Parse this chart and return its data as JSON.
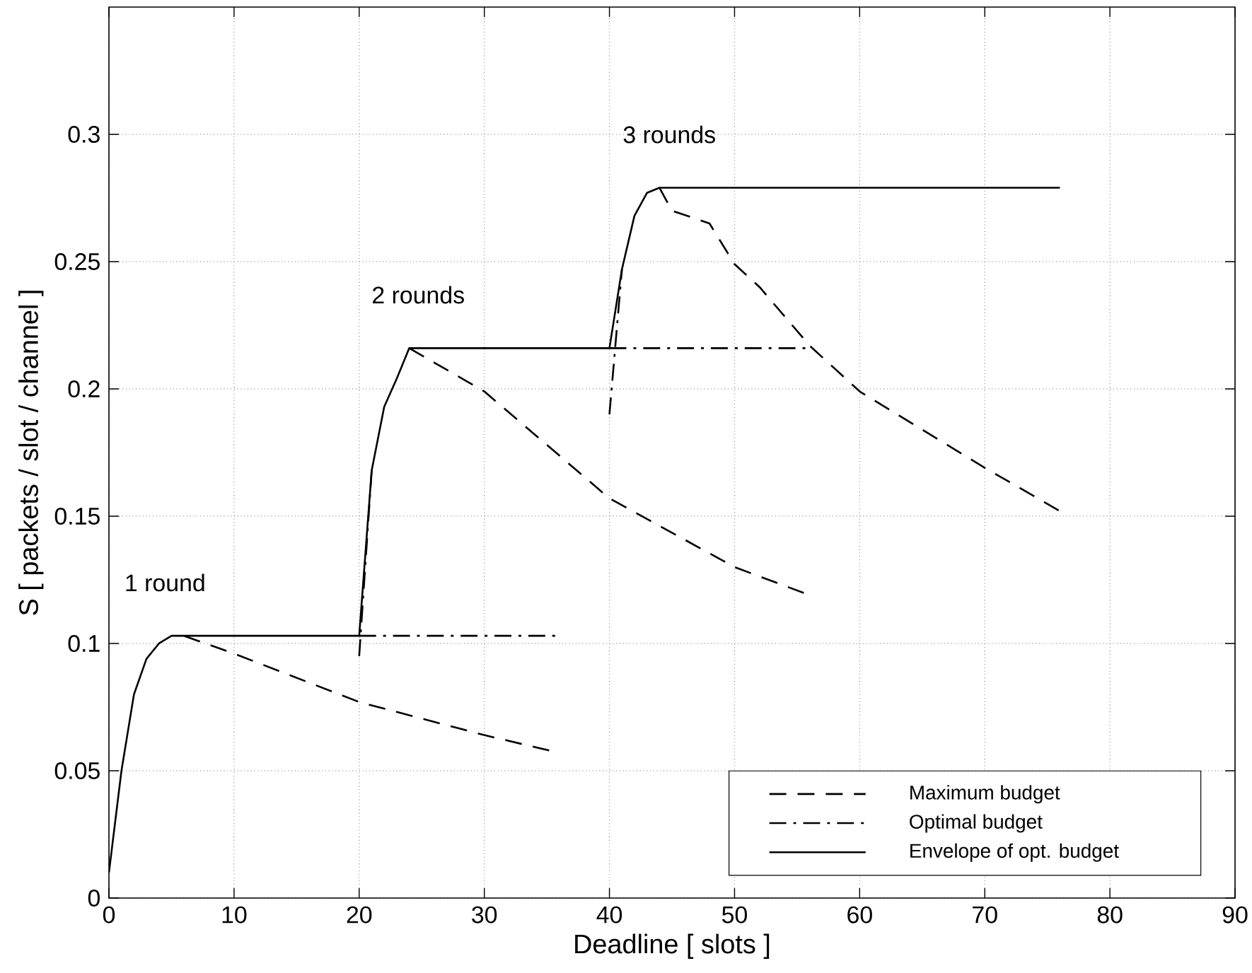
{
  "chart_data": {
    "type": "line",
    "xlabel": "Deadline [ slots ]",
    "ylabel": "S [ packets / slot / channel ]",
    "xlim": [
      0,
      90
    ],
    "ylim": [
      0,
      0.35
    ],
    "xticks": [
      0,
      10,
      20,
      30,
      40,
      50,
      60,
      70,
      80,
      90
    ],
    "yticks": [
      0,
      0.05,
      0.1,
      0.15,
      0.2,
      0.25,
      0.3
    ],
    "grid": true,
    "legend": "bottom right",
    "marker": "none",
    "series": [
      {
        "name": "Maximum budget",
        "color": "#000000",
        "line_style": "dashed",
        "x": [
          6,
          10,
          20,
          30,
          36,
          null,
          24,
          30,
          35,
          40,
          50,
          56,
          null,
          44,
          45,
          48,
          50,
          52,
          56,
          60,
          70,
          76
        ],
        "values": [
          0.103,
          0.096,
          0.077,
          0.064,
          0.057,
          null,
          0.216,
          0.199,
          0.178,
          0.157,
          0.13,
          0.119,
          null,
          0.279,
          0.27,
          0.265,
          0.249,
          0.24,
          0.217,
          0.199,
          0.169,
          0.152
        ]
      },
      {
        "name": "Optimal budget",
        "color": "#000000",
        "line_style": "dashdot",
        "x": [
          20,
          36,
          null,
          20,
          21,
          null,
          40,
          56,
          null,
          40,
          41
        ],
        "values": [
          0.103,
          0.103,
          null,
          0.095,
          0.168,
          null,
          0.216,
          0.216,
          null,
          0.19,
          0.247
        ]
      },
      {
        "name": "Envelope of opt. budget",
        "color": "#000000",
        "line_style": "solid",
        "x": [
          0,
          1,
          2,
          3,
          4,
          5,
          20,
          21,
          22,
          23,
          24,
          40,
          41,
          42,
          43,
          44,
          76
        ],
        "values": [
          0.01,
          0.05,
          0.08,
          0.094,
          0.1,
          0.103,
          0.103,
          0.168,
          0.193,
          0.204,
          0.216,
          0.216,
          0.247,
          0.268,
          0.277,
          0.279,
          0.279
        ]
      }
    ],
    "annotations": [
      "1 round",
      "2 rounds",
      "3 rounds"
    ]
  }
}
